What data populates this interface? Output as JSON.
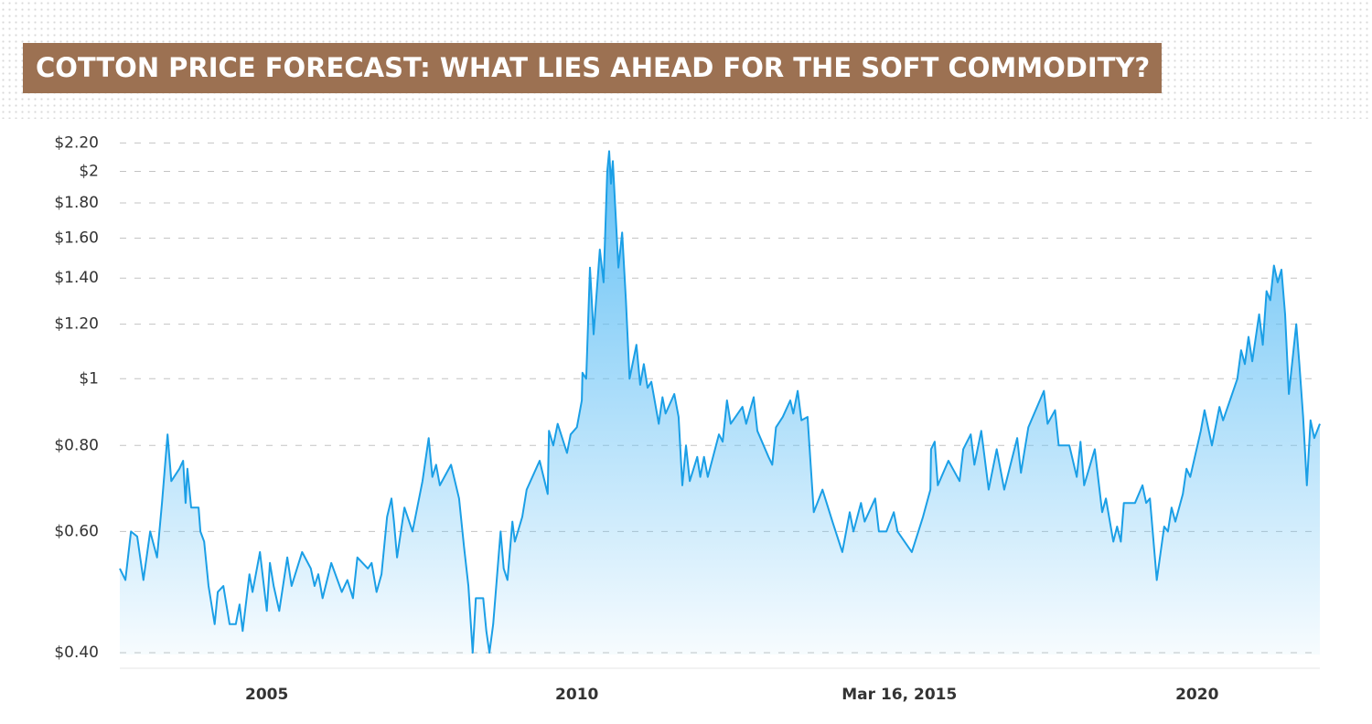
{
  "chart_data": {
    "type": "area",
    "title": "COTTON PRICE FORECAST: WHAT LIES AHEAD FOR THE SOFT COMMODITY?",
    "color": "#1b9fe6",
    "fill_color": "#5bbdf5",
    "log_scale": true,
    "grid": true,
    "xlim": [
      2002.63,
      2021.98
    ],
    "ylim": [
      0.4,
      2.25
    ],
    "xticks": [
      {
        "value": 2005,
        "label": "2005"
      },
      {
        "value": 2010,
        "label": "2010"
      },
      {
        "value": 2015.2,
        "label": "Mar 16, 2015"
      },
      {
        "value": 2020,
        "label": "2020"
      }
    ],
    "yticks": [
      {
        "value": 0.4,
        "label": "$0.40"
      },
      {
        "value": 0.6,
        "label": "$0.60"
      },
      {
        "value": 0.8,
        "label": "$0.80"
      },
      {
        "value": 1,
        "label": "$1"
      },
      {
        "value": 1.2,
        "label": "$1.20"
      },
      {
        "value": 1.4,
        "label": "$1.40"
      },
      {
        "value": 1.6,
        "label": "$1.60"
      },
      {
        "value": 1.8,
        "label": "$1.80"
      },
      {
        "value": 2,
        "label": "$2"
      },
      {
        "value": 2.2,
        "label": "$2.20"
      }
    ],
    "x": [
      2002.63,
      2002.72,
      2002.81,
      2002.91,
      2003.01,
      2003.12,
      2003.23,
      2003.31,
      2003.4,
      2003.46,
      2003.59,
      2003.65,
      2003.69,
      2003.72,
      2003.78,
      2003.9,
      2003.93,
      2003.99,
      2004.06,
      2004.16,
      2004.21,
      2004.3,
      2004.4,
      2004.5,
      2004.56,
      2004.61,
      2004.72,
      2004.77,
      2004.89,
      2005.0,
      2005.05,
      2005.11,
      2005.2,
      2005.33,
      2005.4,
      2005.57,
      2005.71,
      2005.77,
      2005.83,
      2005.9,
      2006.04,
      2006.21,
      2006.3,
      2006.39,
      2006.46,
      2006.63,
      2006.69,
      2006.77,
      2006.85,
      2006.94,
      2007.01,
      2007.05,
      2007.1,
      2007.22,
      2007.35,
      2007.51,
      2007.61,
      2007.67,
      2007.73,
      2007.79,
      2007.97,
      2008.1,
      2008.18,
      2008.25,
      2008.32,
      2008.37,
      2008.49,
      2008.54,
      2008.59,
      2008.65,
      2008.77,
      2008.82,
      2008.88,
      2008.96,
      2009.0,
      2009.12,
      2009.19,
      2009.4,
      2009.53,
      2009.55,
      2009.62,
      2009.69,
      2009.84,
      2009.9,
      2010.0,
      2010.08,
      2010.09,
      2010.15,
      2010.21,
      2010.27,
      2010.37,
      2010.43,
      2010.49,
      2010.52,
      2010.55,
      2010.58,
      2010.67,
      2010.73,
      2010.79,
      2010.85,
      2010.96,
      2011.02,
      2011.08,
      2011.14,
      2011.2,
      2011.32,
      2011.38,
      2011.43,
      2011.57,
      2011.64,
      2011.7,
      2011.76,
      2011.82,
      2011.94,
      2011.99,
      2012.05,
      2012.11,
      2012.29,
      2012.35,
      2012.42,
      2012.48,
      2012.67,
      2012.73,
      2012.85,
      2012.91,
      2013.09,
      2013.15,
      2013.21,
      2013.32,
      2013.44,
      2013.49,
      2013.56,
      2013.62,
      2013.72,
      2013.82,
      2013.96,
      2014.12,
      2014.28,
      2014.4,
      2014.46,
      2014.58,
      2014.64,
      2014.81,
      2014.87,
      2014.99,
      2015.11,
      2015.17,
      2015.34,
      2015.4,
      2015.58,
      2015.7,
      2015.71,
      2015.77,
      2015.82,
      2015.99,
      2016.17,
      2016.23,
      2016.35,
      2016.41,
      2016.52,
      2016.64,
      2016.77,
      2016.89,
      2017.1,
      2017.16,
      2017.28,
      2017.53,
      2017.59,
      2017.71,
      2017.77,
      2017.94,
      2018.06,
      2018.12,
      2018.18,
      2018.35,
      2018.47,
      2018.53,
      2018.65,
      2018.71,
      2018.77,
      2018.82,
      2019.0,
      2019.12,
      2019.18,
      2019.24,
      2019.35,
      2019.47,
      2019.53,
      2019.59,
      2019.65,
      2019.77,
      2019.83,
      2019.89,
      2020.06,
      2020.12,
      2020.24,
      2020.36,
      2020.42,
      2020.53,
      2020.65,
      2020.71,
      2020.77,
      2020.83,
      2020.89,
      2021.0,
      2021.06,
      2021.12,
      2021.18,
      2021.24,
      2021.3,
      2021.36,
      2021.42,
      2021.48,
      2021.6,
      2021.65,
      2021.71,
      2021.77,
      2021.83,
      2021.89,
      2021.98
    ],
    "values": [
      0.53,
      0.51,
      0.6,
      0.59,
      0.51,
      0.6,
      0.55,
      0.66,
      0.83,
      0.71,
      0.74,
      0.76,
      0.66,
      0.74,
      0.65,
      0.65,
      0.6,
      0.58,
      0.5,
      0.44,
      0.49,
      0.5,
      0.44,
      0.44,
      0.47,
      0.43,
      0.52,
      0.49,
      0.56,
      0.46,
      0.54,
      0.5,
      0.46,
      0.55,
      0.5,
      0.56,
      0.53,
      0.5,
      0.52,
      0.48,
      0.54,
      0.49,
      0.51,
      0.48,
      0.55,
      0.53,
      0.54,
      0.49,
      0.52,
      0.63,
      0.67,
      0.62,
      0.55,
      0.65,
      0.6,
      0.71,
      0.82,
      0.72,
      0.75,
      0.7,
      0.75,
      0.67,
      0.57,
      0.5,
      0.4,
      0.48,
      0.48,
      0.43,
      0.4,
      0.44,
      0.6,
      0.53,
      0.51,
      0.62,
      0.58,
      0.63,
      0.69,
      0.76,
      0.68,
      0.84,
      0.8,
      0.86,
      0.78,
      0.83,
      0.85,
      0.93,
      1.02,
      1.0,
      1.45,
      1.16,
      1.54,
      1.38,
      2.0,
      2.14,
      1.92,
      2.07,
      1.45,
      1.63,
      1.3,
      1.0,
      1.12,
      0.98,
      1.05,
      0.97,
      0.99,
      0.86,
      0.94,
      0.89,
      0.95,
      0.88,
      0.7,
      0.8,
      0.71,
      0.77,
      0.72,
      0.77,
      0.72,
      0.83,
      0.81,
      0.93,
      0.86,
      0.91,
      0.86,
      0.94,
      0.84,
      0.77,
      0.75,
      0.85,
      0.88,
      0.93,
      0.89,
      0.96,
      0.87,
      0.88,
      0.64,
      0.69,
      0.62,
      0.56,
      0.64,
      0.6,
      0.66,
      0.62,
      0.67,
      0.6,
      0.6,
      0.64,
      0.6,
      0.57,
      0.56,
      0.63,
      0.69,
      0.79,
      0.81,
      0.7,
      0.76,
      0.71,
      0.79,
      0.83,
      0.75,
      0.84,
      0.69,
      0.79,
      0.69,
      0.82,
      0.73,
      0.85,
      0.96,
      0.86,
      0.9,
      0.8,
      0.8,
      0.72,
      0.81,
      0.7,
      0.79,
      0.64,
      0.67,
      0.58,
      0.61,
      0.58,
      0.66,
      0.66,
      0.7,
      0.66,
      0.67,
      0.51,
      0.61,
      0.6,
      0.65,
      0.62,
      0.68,
      0.74,
      0.72,
      0.84,
      0.9,
      0.8,
      0.91,
      0.87,
      0.93,
      1.0,
      1.1,
      1.05,
      1.15,
      1.06,
      1.24,
      1.12,
      1.34,
      1.3,
      1.46,
      1.38,
      1.44,
      1.24,
      0.95,
      1.2,
      1.05,
      0.88,
      0.7,
      0.87,
      0.82,
      0.86
    ]
  }
}
